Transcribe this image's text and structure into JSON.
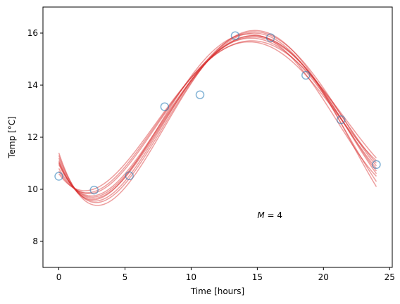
{
  "chart_data": {
    "type": "scatter",
    "xlabel": "Time [hours]",
    "ylabel": "Temp [°C]",
    "xlim": [
      -1.2,
      25.2
    ],
    "ylim": [
      7.0,
      17.0
    ],
    "xticks": [
      0,
      5,
      10,
      15,
      20,
      25
    ],
    "yticks": [
      8,
      10,
      12,
      14,
      16
    ],
    "grid": false,
    "annotation": {
      "prefix": "M",
      "suffix": " = 4",
      "x": 15.0,
      "y": 9.0
    },
    "colors": {
      "points": "#1f77b4",
      "curves": "#d62728",
      "frame": "#000000"
    },
    "points": {
      "x": [
        0.0,
        2.67,
        5.33,
        8.0,
        10.67,
        13.33,
        16.0,
        18.67,
        21.33,
        24.0
      ],
      "y": [
        10.5,
        9.97,
        10.52,
        13.17,
        13.63,
        15.9,
        15.82,
        14.38,
        12.67,
        10.95
      ]
    },
    "curves": [
      {
        "x": [
          0,
          2.6,
          8,
          14.8,
          24
        ],
        "y": [
          11.0,
          9.7,
          12.7,
          15.9,
          10.6
        ]
      },
      {
        "x": [
          0,
          2.6,
          8,
          14.8,
          24
        ],
        "y": [
          11.2,
          9.55,
          12.6,
          16.05,
          10.9
        ]
      },
      {
        "x": [
          0,
          2.6,
          8,
          14.8,
          24
        ],
        "y": [
          10.8,
          9.85,
          12.9,
          15.8,
          10.8
        ]
      },
      {
        "x": [
          0,
          2.6,
          8,
          14.8,
          24
        ],
        "y": [
          11.4,
          9.4,
          12.4,
          16.1,
          10.1
        ]
      },
      {
        "x": [
          0,
          2.6,
          8,
          14.8,
          24
        ],
        "y": [
          10.6,
          10.0,
          13.0,
          15.7,
          11.2
        ]
      },
      {
        "x": [
          0,
          2.6,
          8,
          14.8,
          24
        ],
        "y": [
          11.1,
          9.6,
          12.8,
          15.95,
          10.5
        ]
      },
      {
        "x": [
          0,
          2.6,
          8,
          14.8,
          24
        ],
        "y": [
          10.95,
          9.75,
          12.75,
          15.85,
          11.0
        ]
      },
      {
        "x": [
          0,
          2.6,
          8,
          14.8,
          24
        ],
        "y": [
          11.3,
          9.5,
          12.5,
          16.0,
          10.3
        ]
      },
      {
        "x": [
          0,
          2.6,
          8,
          14.8,
          24
        ],
        "y": [
          10.7,
          9.9,
          12.95,
          15.65,
          11.1
        ]
      },
      {
        "x": [
          0,
          2.6,
          8,
          14.8,
          24
        ],
        "y": [
          11.05,
          9.65,
          12.65,
          15.9,
          10.7
        ]
      }
    ]
  }
}
